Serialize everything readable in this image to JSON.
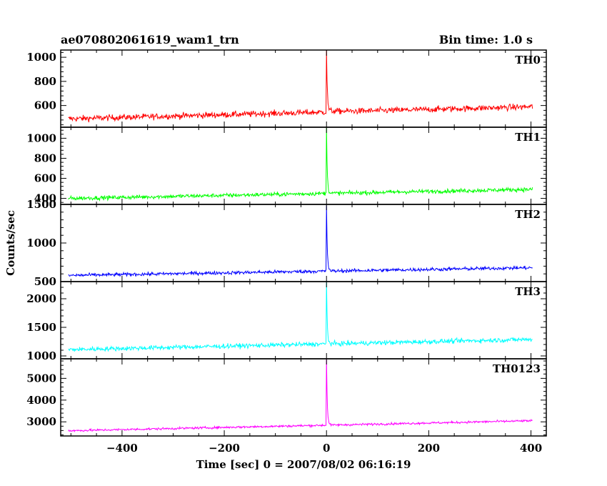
{
  "chart_data": {
    "type": "line",
    "title": "ae070802061619_wam1_trn",
    "subtitle": "Bin time: 1.0 s",
    "xlabel": "Time [sec] 0 = 2007/08/02 06:16:19",
    "ylabel": "Counts/sec",
    "xlim": [
      -520,
      430
    ],
    "xticks": [
      -400,
      -200,
      0,
      200,
      400
    ],
    "xtick_labels": [
      "−400",
      "−200",
      "0",
      "200",
      "400"
    ],
    "grid": false,
    "panels": [
      {
        "name": "TH0",
        "color": "#ff0000",
        "ylim": [
          420,
          1060
        ],
        "yticks": [
          600,
          800,
          1000
        ],
        "start_level": 490,
        "end_level": 590,
        "noise": 25,
        "burst_time": 0,
        "peak": 1060,
        "post_level": 560,
        "burst_decay": 1.5
      },
      {
        "name": "TH1",
        "color": "#00ff00",
        "ylim": [
          340,
          1110
        ],
        "yticks": [
          400,
          600,
          800,
          1000
        ],
        "start_level": 400,
        "end_level": 490,
        "noise": 20,
        "burst_time": 0,
        "peak": 1110,
        "post_level": 450,
        "burst_decay": 1.5
      },
      {
        "name": "TH2",
        "color": "#0000ff",
        "ylim": [
          500,
          1500
        ],
        "yticks": [
          500,
          1000,
          1500
        ],
        "start_level": 580,
        "end_level": 680,
        "noise": 22,
        "burst_time": 0,
        "peak": 1490,
        "post_level": 620,
        "burst_decay": 1.5
      },
      {
        "name": "TH3",
        "color": "#00ffff",
        "ylim": [
          950,
          2300
        ],
        "yticks": [
          1000,
          1500,
          2000
        ],
        "start_level": 1110,
        "end_level": 1290,
        "noise": 40,
        "burst_time": 0,
        "peak": 2300,
        "post_level": 1190,
        "burst_decay": 1.5
      },
      {
        "name": "TH0123",
        "color": "#ff00ff",
        "ylim": [
          2350,
          5900
        ],
        "yticks": [
          3000,
          4000,
          5000
        ],
        "start_level": 2590,
        "end_level": 3050,
        "noise": 50,
        "burst_time": 0,
        "peak": 5900,
        "post_level": 2820,
        "burst_decay": 1.5
      }
    ]
  }
}
